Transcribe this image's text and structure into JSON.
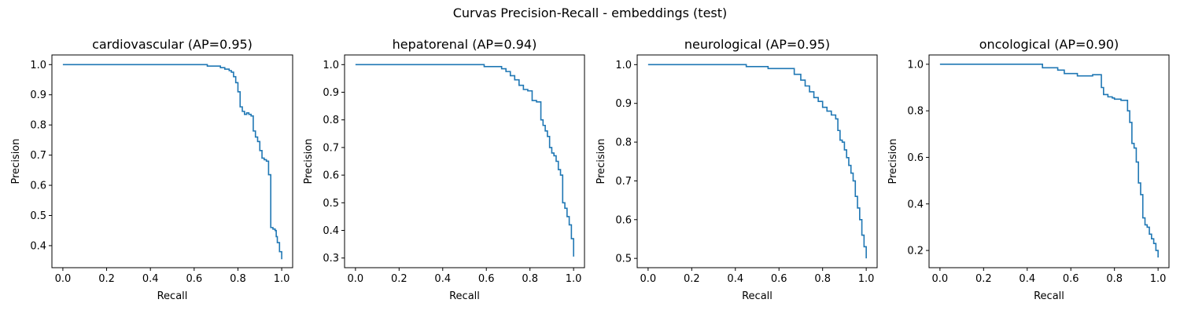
{
  "figure": {
    "title": "Curvas Precision-Recall - embeddings (test)"
  },
  "colors": {
    "series": "#1f77b4"
  },
  "chart_data": [
    {
      "type": "line",
      "step": "post",
      "title": "cardiovascular (AP=0.95)",
      "xlabel": "Recall",
      "ylabel": "Precision",
      "xlim": [
        -0.05,
        1.05
      ],
      "ylim": [
        0.327,
        1.032
      ],
      "xticks": [
        0.0,
        0.2,
        0.4,
        0.6,
        0.8,
        1.0
      ],
      "xtick_labels": [
        "0.0",
        "0.2",
        "0.4",
        "0.6",
        "0.8",
        "1.0"
      ],
      "yticks": [
        0.4,
        0.5,
        0.6,
        0.7,
        0.8,
        0.9,
        1.0
      ],
      "ytick_labels": [
        "0.4",
        "0.5",
        "0.6",
        "0.7",
        "0.8",
        "0.9",
        "1.0"
      ],
      "grid": false,
      "series": [
        {
          "x": [
            0.0,
            0.66,
            0.72,
            0.74,
            0.76,
            0.77,
            0.78,
            0.79,
            0.8,
            0.81,
            0.82,
            0.83,
            0.84,
            0.85,
            0.86,
            0.87,
            0.88,
            0.89,
            0.9,
            0.91,
            0.92,
            0.93,
            0.94,
            0.95,
            0.96,
            0.97,
            0.975,
            0.98,
            0.99,
            1.0
          ],
          "y": [
            1.0,
            0.995,
            0.99,
            0.985,
            0.98,
            0.975,
            0.96,
            0.94,
            0.91,
            0.86,
            0.845,
            0.835,
            0.84,
            0.835,
            0.83,
            0.78,
            0.76,
            0.745,
            0.715,
            0.69,
            0.685,
            0.68,
            0.635,
            0.46,
            0.455,
            0.45,
            0.43,
            0.41,
            0.38,
            0.355
          ]
        }
      ]
    },
    {
      "type": "line",
      "step": "post",
      "title": "hepatorenal (AP=0.94)",
      "xlabel": "Recall",
      "ylabel": "Precision",
      "xlim": [
        -0.05,
        1.05
      ],
      "ylim": [
        0.265,
        1.035
      ],
      "xticks": [
        0.0,
        0.2,
        0.4,
        0.6,
        0.8,
        1.0
      ],
      "xtick_labels": [
        "0.0",
        "0.2",
        "0.4",
        "0.6",
        "0.8",
        "1.0"
      ],
      "yticks": [
        0.3,
        0.4,
        0.5,
        0.6,
        0.7,
        0.8,
        0.9,
        1.0
      ],
      "ytick_labels": [
        "0.3",
        "0.4",
        "0.5",
        "0.6",
        "0.7",
        "0.8",
        "0.9",
        "1.0"
      ],
      "grid": false,
      "series": [
        {
          "x": [
            0.0,
            0.59,
            0.67,
            0.69,
            0.71,
            0.73,
            0.75,
            0.77,
            0.79,
            0.81,
            0.83,
            0.85,
            0.86,
            0.87,
            0.88,
            0.89,
            0.9,
            0.91,
            0.92,
            0.93,
            0.94,
            0.95,
            0.96,
            0.97,
            0.98,
            0.99,
            1.0
          ],
          "y": [
            1.0,
            0.993,
            0.985,
            0.975,
            0.96,
            0.945,
            0.925,
            0.91,
            0.905,
            0.87,
            0.865,
            0.8,
            0.78,
            0.76,
            0.74,
            0.7,
            0.68,
            0.67,
            0.65,
            0.62,
            0.6,
            0.5,
            0.48,
            0.45,
            0.42,
            0.37,
            0.305
          ]
        }
      ]
    },
    {
      "type": "line",
      "step": "post",
      "title": "neurological (AP=0.95)",
      "xlabel": "Recall",
      "ylabel": "Precision",
      "xlim": [
        -0.05,
        1.05
      ],
      "ylim": [
        0.476,
        1.025
      ],
      "xticks": [
        0.0,
        0.2,
        0.4,
        0.6,
        0.8,
        1.0
      ],
      "xtick_labels": [
        "0.0",
        "0.2",
        "0.4",
        "0.6",
        "0.8",
        "1.0"
      ],
      "yticks": [
        0.5,
        0.6,
        0.7,
        0.8,
        0.9,
        1.0
      ],
      "ytick_labels": [
        "0.5",
        "0.6",
        "0.7",
        "0.8",
        "0.9",
        "1.0"
      ],
      "grid": false,
      "series": [
        {
          "x": [
            0.0,
            0.45,
            0.55,
            0.67,
            0.7,
            0.72,
            0.74,
            0.76,
            0.78,
            0.8,
            0.82,
            0.84,
            0.86,
            0.87,
            0.88,
            0.89,
            0.9,
            0.91,
            0.92,
            0.93,
            0.94,
            0.95,
            0.96,
            0.97,
            0.98,
            0.99,
            1.0
          ],
          "y": [
            1.0,
            0.995,
            0.99,
            0.975,
            0.96,
            0.945,
            0.93,
            0.915,
            0.905,
            0.89,
            0.88,
            0.87,
            0.86,
            0.83,
            0.805,
            0.8,
            0.78,
            0.76,
            0.74,
            0.72,
            0.7,
            0.66,
            0.63,
            0.6,
            0.56,
            0.53,
            0.5
          ]
        }
      ]
    },
    {
      "type": "line",
      "step": "post",
      "title": "oncological (AP=0.90)",
      "xlabel": "Recall",
      "ylabel": "Precision",
      "xlim": [
        -0.05,
        1.05
      ],
      "ylim": [
        0.126,
        1.04
      ],
      "xticks": [
        0.0,
        0.2,
        0.4,
        0.6,
        0.8,
        1.0
      ],
      "xtick_labels": [
        "0.0",
        "0.2",
        "0.4",
        "0.6",
        "0.8",
        "1.0"
      ],
      "yticks": [
        0.2,
        0.4,
        0.6,
        0.8,
        1.0
      ],
      "ytick_labels": [
        "0.2",
        "0.4",
        "0.6",
        "0.8",
        "1.0"
      ],
      "grid": false,
      "series": [
        {
          "x": [
            0.0,
            0.47,
            0.54,
            0.57,
            0.63,
            0.7,
            0.74,
            0.75,
            0.77,
            0.79,
            0.8,
            0.83,
            0.86,
            0.87,
            0.88,
            0.89,
            0.9,
            0.91,
            0.92,
            0.93,
            0.94,
            0.95,
            0.96,
            0.97,
            0.98,
            0.99,
            1.0
          ],
          "y": [
            1.0,
            0.985,
            0.975,
            0.96,
            0.95,
            0.955,
            0.9,
            0.87,
            0.86,
            0.855,
            0.85,
            0.845,
            0.8,
            0.75,
            0.66,
            0.64,
            0.58,
            0.49,
            0.44,
            0.34,
            0.31,
            0.3,
            0.27,
            0.25,
            0.23,
            0.2,
            0.17
          ]
        }
      ]
    }
  ]
}
